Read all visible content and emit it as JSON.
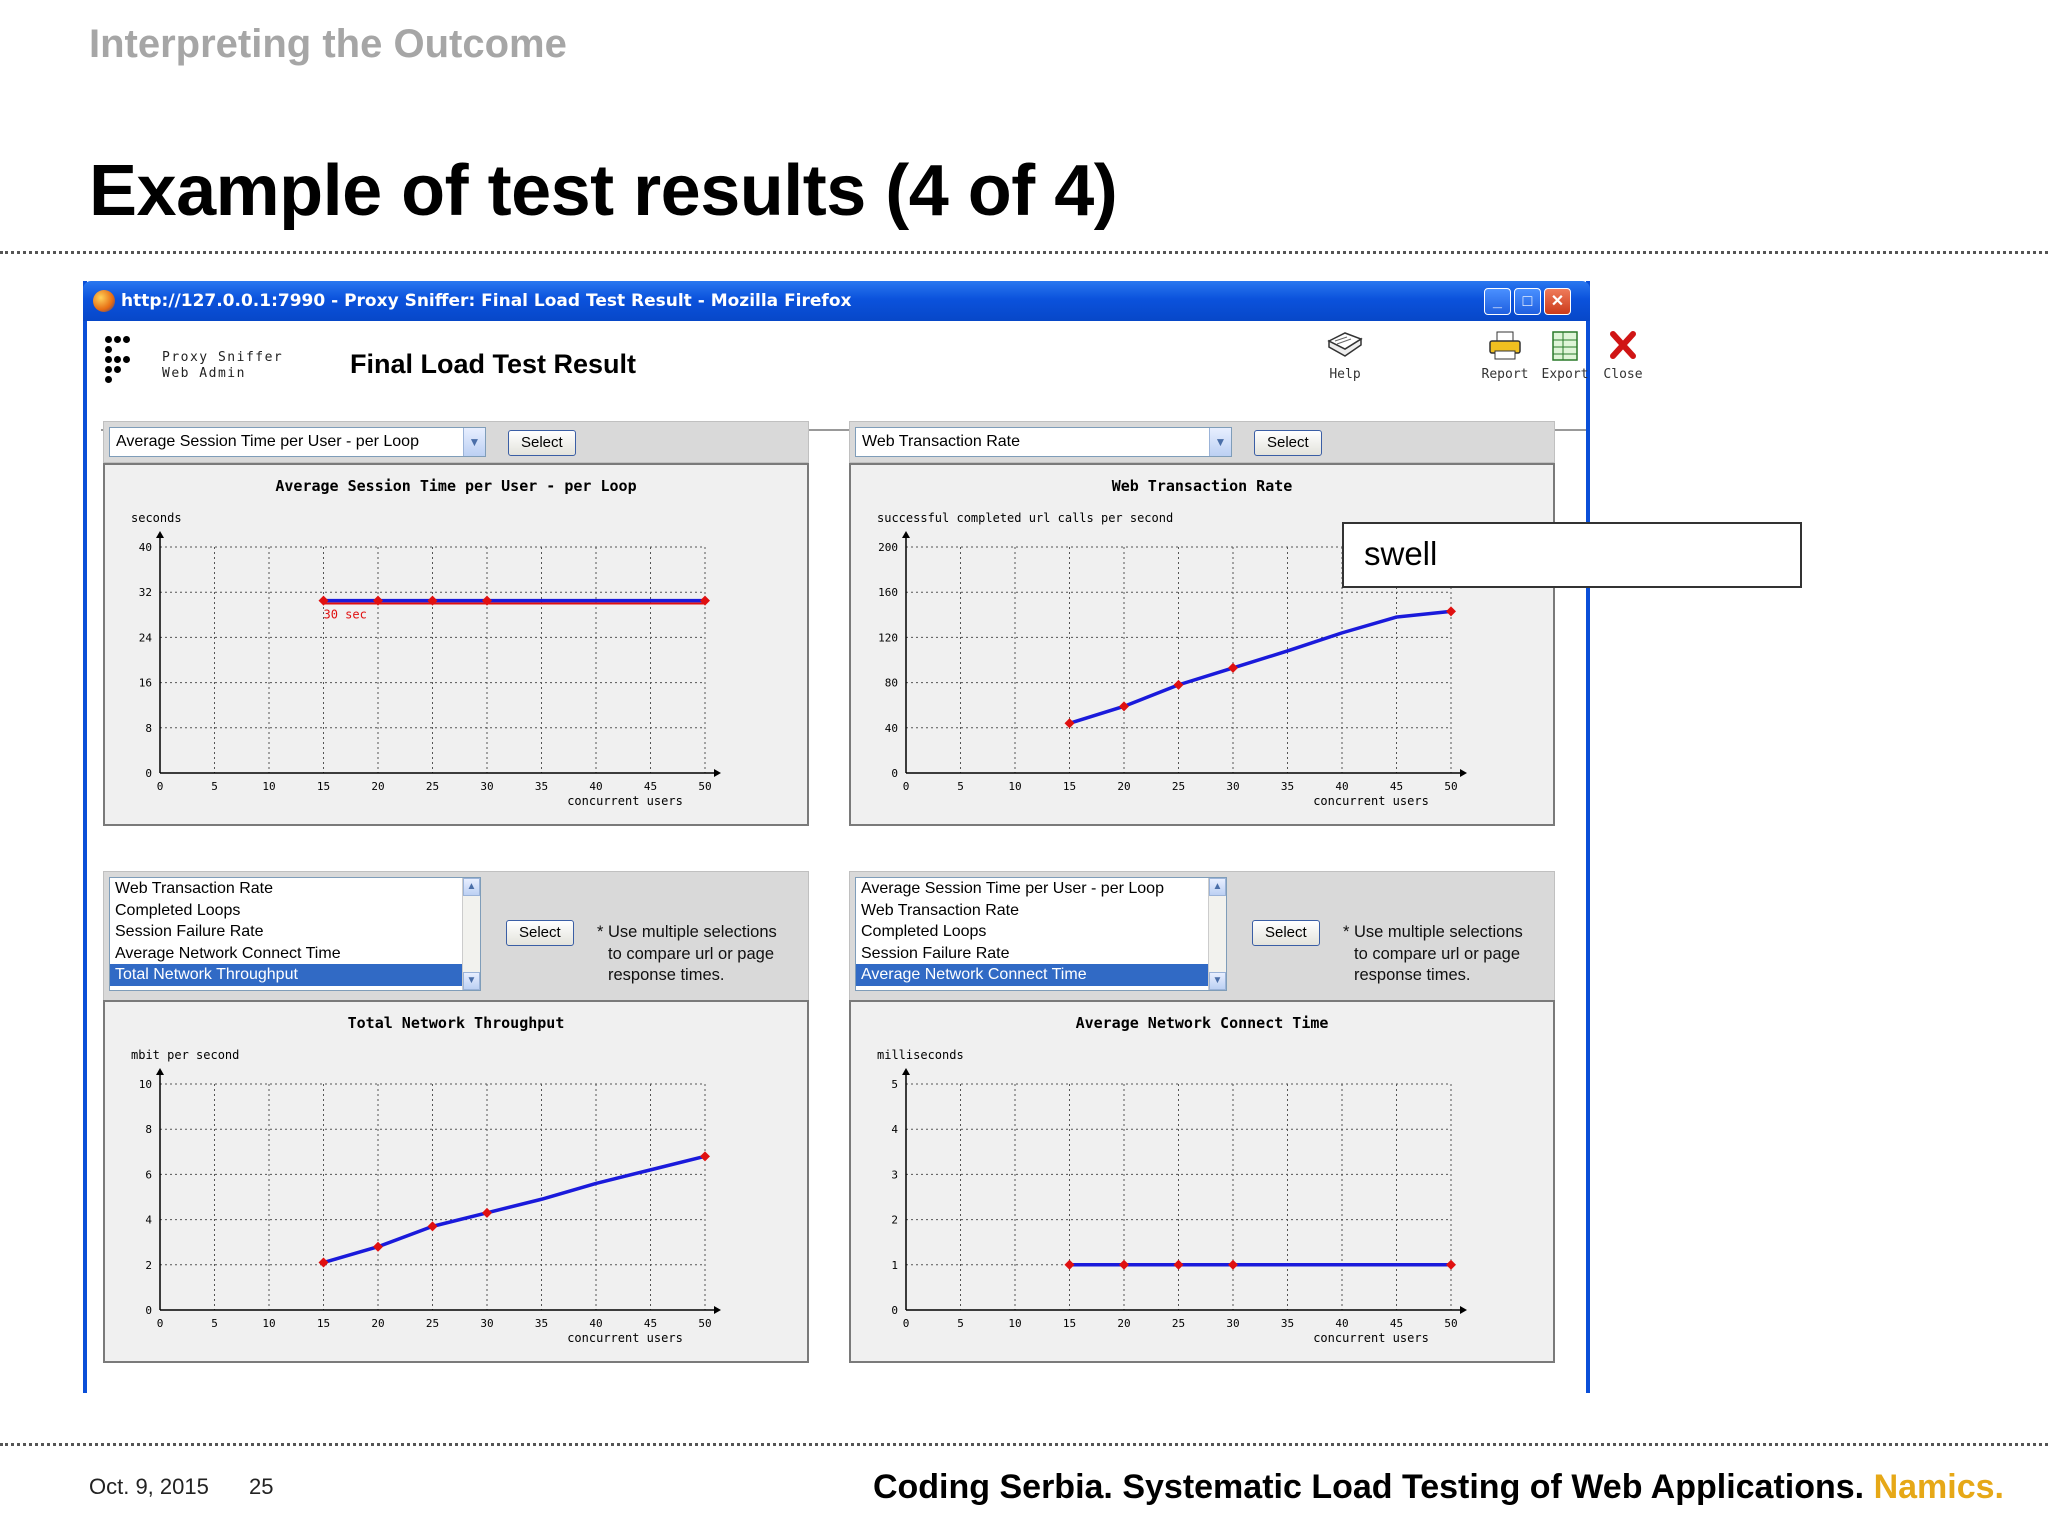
{
  "slide": {
    "section_title": "Interpreting the Outcome",
    "title": "Example of test results (4 of 4)",
    "footer_date": "Oct. 9, 2015",
    "footer_page": "25",
    "footer_text": "Coding Serbia. Systematic Load Testing of Web Applications.",
    "footer_brand": "Namics.",
    "accent_color": "#e6a817"
  },
  "window": {
    "title": "http://127.0.0.1:7990 - Proxy Sniffer: Final Load Test Result - Mozilla Firefox",
    "min_label": "_",
    "max_label": "□",
    "close_label": "✕"
  },
  "app": {
    "brand_line1": "Proxy Sniffer",
    "brand_line2": "Web Admin",
    "title": "Final Load Test Result",
    "toolbar": {
      "help": "Help",
      "report": "Report",
      "export": "Export",
      "close": "Close"
    }
  },
  "controls": {
    "select_label": "Select",
    "top_left_dropdown": "Average Session Time per User - per Loop",
    "top_right_dropdown": "Web Transaction Rate",
    "hint_line1": "* Use multiple selections",
    "hint_line2": "to compare url or page",
    "hint_line3": "response times.",
    "bottom_left_list": [
      "Web Transaction Rate",
      "Completed Loops",
      "Session Failure Rate",
      "Average Network Connect Time",
      "Total Network Throughput"
    ],
    "bottom_left_selected": 4,
    "bottom_right_list": [
      "Average Session Time per User - per Loop",
      "Web Transaction Rate",
      "Completed Loops",
      "Session Failure Rate",
      "Average Network Connect Time"
    ],
    "bottom_right_selected": 4
  },
  "annotation": {
    "text": "swell"
  },
  "chart_data": [
    {
      "type": "line",
      "title": "Average Session Time per User - per Loop",
      "ylabel": "seconds",
      "xlabel": "concurrent users",
      "xlim": [
        0,
        50
      ],
      "ylim": [
        0,
        40
      ],
      "xticks": [
        0,
        5,
        10,
        15,
        20,
        25,
        30,
        35,
        40,
        45,
        50
      ],
      "yticks": [
        0,
        8,
        16,
        24,
        32,
        40
      ],
      "series": [
        {
          "x": [
            15,
            20,
            25,
            30,
            50
          ],
          "y": [
            30.5,
            30.5,
            30.5,
            30.5,
            30.5
          ],
          "markers": [
            15,
            20,
            25,
            30,
            50
          ]
        }
      ],
      "ref_line": {
        "y": 30,
        "label": "30 sec",
        "color": "#e01010"
      },
      "line_color": "#1a1adb",
      "marker_color": "#e01010",
      "grid": true
    },
    {
      "type": "line",
      "title": "Web Transaction Rate",
      "ylabel": "successful completed url calls per second",
      "xlabel": "concurrent users",
      "xlim": [
        0,
        50
      ],
      "ylim": [
        0,
        200
      ],
      "xticks": [
        0,
        5,
        10,
        15,
        20,
        25,
        30,
        35,
        40,
        45,
        50
      ],
      "yticks": [
        0,
        40,
        80,
        120,
        160,
        200
      ],
      "series": [
        {
          "x": [
            15,
            20,
            25,
            30,
            35,
            40,
            45,
            50
          ],
          "y": [
            44,
            59,
            78,
            93,
            108,
            124,
            138,
            143
          ],
          "markers": [
            15,
            20,
            25,
            30,
            50
          ]
        }
      ],
      "line_color": "#1a1adb",
      "marker_color": "#e01010",
      "grid": true
    },
    {
      "type": "line",
      "title": "Total Network Throughput",
      "ylabel": "mbit per second",
      "xlabel": "concurrent users",
      "xlim": [
        0,
        50
      ],
      "ylim": [
        0,
        10
      ],
      "xticks": [
        0,
        5,
        10,
        15,
        20,
        25,
        30,
        35,
        40,
        45,
        50
      ],
      "yticks": [
        0,
        2,
        4,
        6,
        8,
        10
      ],
      "series": [
        {
          "x": [
            15,
            20,
            25,
            30,
            35,
            40,
            45,
            50
          ],
          "y": [
            2.1,
            2.8,
            3.7,
            4.3,
            4.9,
            5.6,
            6.2,
            6.8
          ],
          "markers": [
            15,
            20,
            25,
            30,
            50
          ]
        }
      ],
      "line_color": "#1a1adb",
      "marker_color": "#e01010",
      "grid": true
    },
    {
      "type": "line",
      "title": "Average Network Connect Time",
      "ylabel": "milliseconds",
      "xlabel": "concurrent users",
      "xlim": [
        0,
        50
      ],
      "ylim": [
        0,
        5
      ],
      "xticks": [
        0,
        5,
        10,
        15,
        20,
        25,
        30,
        35,
        40,
        45,
        50
      ],
      "yticks": [
        0,
        1,
        2,
        3,
        4,
        5
      ],
      "series": [
        {
          "x": [
            15,
            20,
            25,
            30,
            50
          ],
          "y": [
            1,
            1,
            1,
            1,
            1
          ],
          "markers": [
            15,
            20,
            25,
            30,
            50
          ]
        }
      ],
      "line_color": "#1a1adb",
      "marker_color": "#e01010",
      "grid": true
    }
  ]
}
